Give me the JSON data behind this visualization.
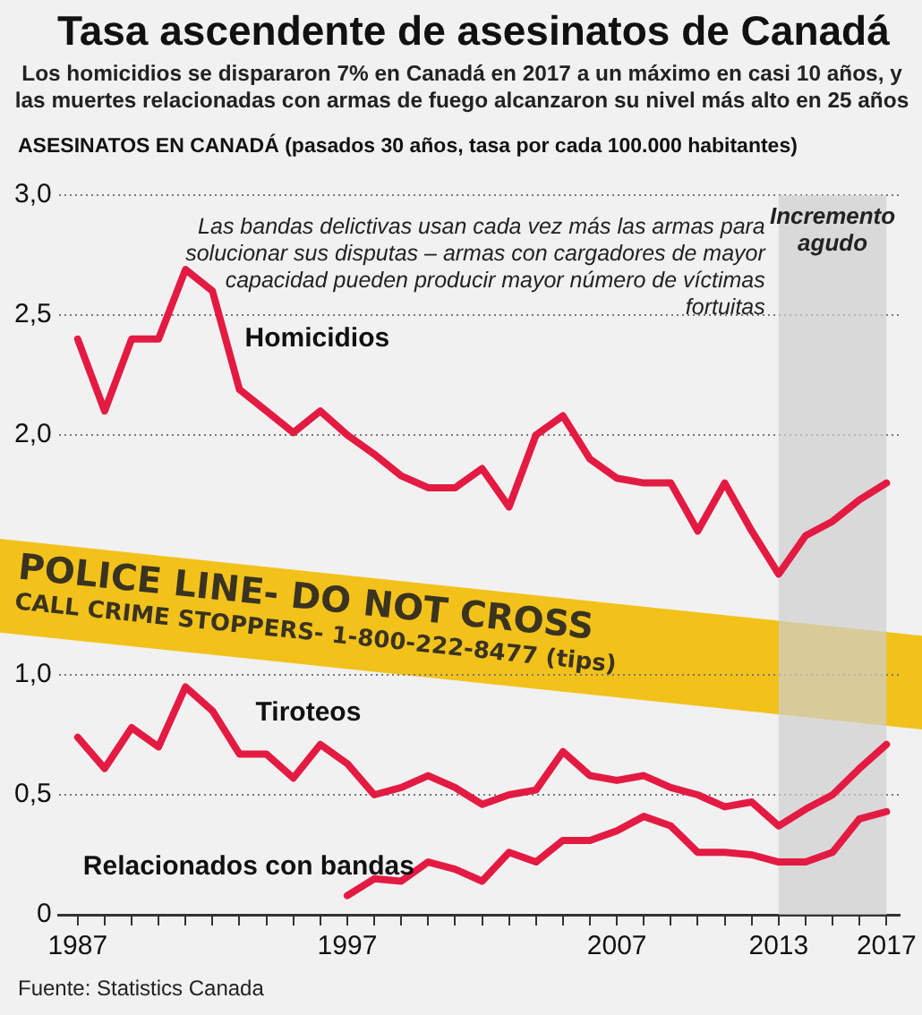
{
  "chart_data": {
    "type": "line",
    "title": "Tasa ascendente de asesinatos de Canadá",
    "subtitle": "Los homicidios se dispararon 7% en Canadá en 2017 a un máximo en casi 10 años, y las muertes relacionadas con armas de fuego alcanzaron su nivel más alto en 25 años",
    "ylabel": "ASESINATOS EN CANADÁ (pasados 30 años, tasa por cada 100.000 habitantes)",
    "x": [
      1987,
      1988,
      1989,
      1990,
      1991,
      1992,
      1993,
      1994,
      1995,
      1996,
      1997,
      1998,
      1999,
      2000,
      2001,
      2002,
      2003,
      2004,
      2005,
      2006,
      2007,
      2008,
      2009,
      2010,
      2011,
      2012,
      2013,
      2014,
      2015,
      2016,
      2017
    ],
    "series": [
      {
        "name": "Homicidios",
        "color": "#e31b43",
        "values": [
          2.4,
          2.1,
          2.4,
          2.4,
          2.69,
          2.6,
          2.19,
          2.1,
          2.01,
          2.1,
          2.0,
          1.92,
          1.83,
          1.78,
          1.78,
          1.86,
          1.7,
          2.0,
          2.08,
          1.9,
          1.82,
          1.8,
          1.8,
          1.6,
          1.8,
          1.6,
          1.42,
          1.58,
          1.64,
          1.73,
          1.8
        ]
      },
      {
        "name": "Tiroteos",
        "color": "#e31b43",
        "values": [
          0.74,
          0.61,
          0.78,
          0.7,
          0.95,
          0.85,
          0.67,
          0.67,
          0.57,
          0.71,
          0.63,
          0.5,
          0.53,
          0.58,
          0.53,
          0.46,
          0.5,
          0.52,
          0.68,
          0.58,
          0.56,
          0.58,
          0.53,
          0.5,
          0.45,
          0.47,
          0.37,
          0.44,
          0.5,
          0.61,
          0.71
        ]
      },
      {
        "name": "Relacionados con bandas",
        "color": "#e31b43",
        "values": [
          null,
          null,
          null,
          null,
          null,
          null,
          null,
          null,
          null,
          null,
          0.08,
          0.15,
          0.14,
          0.22,
          0.19,
          0.14,
          0.26,
          0.22,
          0.31,
          0.31,
          0.35,
          0.41,
          0.37,
          0.26,
          0.26,
          0.25,
          0.22,
          0.22,
          0.26,
          0.4,
          0.43
        ]
      }
    ],
    "xlim": [
      1986.3,
      2017.5
    ],
    "xticks": [
      1987,
      {
        "value": 1988,
        "label": null
      },
      {
        "value": 1989,
        "label": null
      },
      {
        "value": 1990,
        "label": null
      },
      {
        "value": 1991,
        "label": null
      },
      {
        "value": 1992,
        "label": null
      },
      {
        "value": 1993,
        "label": null
      },
      {
        "value": 1994,
        "label": null
      },
      {
        "value": 1995,
        "label": null
      },
      {
        "value": 1996,
        "label": null
      },
      1997,
      {
        "value": 1998,
        "label": null
      },
      {
        "value": 1999,
        "label": null
      },
      {
        "value": 2000,
        "label": null
      },
      {
        "value": 2001,
        "label": null
      },
      {
        "value": 2002,
        "label": null
      },
      {
        "value": 2003,
        "label": null
      },
      {
        "value": 2004,
        "label": null
      },
      {
        "value": 2005,
        "label": null
      },
      {
        "value": 2006,
        "label": null
      },
      2007,
      {
        "value": 2008,
        "label": null
      },
      {
        "value": 2009,
        "label": null
      },
      {
        "value": 2010,
        "label": null
      },
      {
        "value": 2011,
        "label": null
      },
      {
        "value": 2012,
        "label": null
      },
      2013,
      {
        "value": 2014,
        "label": null
      },
      {
        "value": 2015,
        "label": null
      },
      {
        "value": 2016,
        "label": null
      },
      2017
    ],
    "ylim": [
      0,
      3
    ],
    "yticks": [
      {
        "value": 0,
        "label": "0"
      },
      {
        "value": 0.5,
        "label": "0,5"
      },
      {
        "value": 1,
        "label": "1,0"
      },
      {
        "value": 2,
        "label": "2,0"
      },
      {
        "value": 2.5,
        "label": "2,5"
      },
      {
        "value": 3,
        "label": "3,0"
      }
    ],
    "grid": "y",
    "legend": false,
    "marker": "none",
    "line_style": "solid",
    "bands": [
      {
        "axis": "x",
        "from": 2013,
        "to": 2017,
        "label": "Incremento agudo",
        "color": "#cfcfcf"
      }
    ],
    "annotations": [
      "Las bandas delictivas usan cada vez más las armas para solucionar sus disputas – armas con cargadores de mayor capacidad pueden producir mayor número de víctimas fortuitas",
      "Fuente: Statistics Canada",
      "POLICE LINE- DO NOT CROSS",
      "CALL CRIME STOPPERS- 1-800-222-8477 (tips)"
    ]
  }
}
